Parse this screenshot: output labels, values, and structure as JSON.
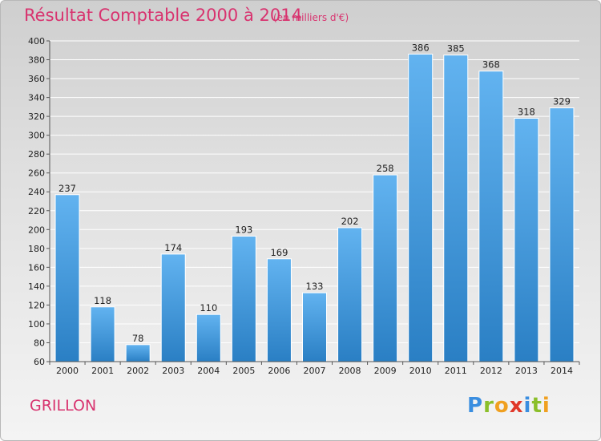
{
  "title": "Résultat Comptable 2000 à 2014",
  "unit_note": "(en milliers d'€)",
  "commune": "GRILLON",
  "logo": {
    "letters": [
      "P",
      "r",
      "o",
      "x",
      "i",
      "t",
      "i"
    ]
  },
  "colors": {
    "title": "#d8336f",
    "bar_top": "#62b3f0",
    "bar_bottom": "#2a7fc4"
  },
  "chart_data": {
    "type": "bar",
    "categories": [
      "2000",
      "2001",
      "2002",
      "2003",
      "2004",
      "2005",
      "2006",
      "2007",
      "2008",
      "2009",
      "2010",
      "2011",
      "2012",
      "2013",
      "2014"
    ],
    "values": [
      237,
      118,
      78,
      174,
      110,
      193,
      169,
      133,
      202,
      258,
      386,
      385,
      368,
      318,
      329
    ],
    "title": "Résultat Comptable 2000 à 2014",
    "subtitle": "(en milliers d'€)",
    "xlabel": "",
    "ylabel": "",
    "ylim": [
      60,
      400
    ],
    "yticks": [
      60,
      80,
      100,
      120,
      140,
      160,
      180,
      200,
      220,
      240,
      260,
      280,
      300,
      320,
      340,
      360,
      380,
      400
    ],
    "grid": true,
    "data_labels": true
  }
}
